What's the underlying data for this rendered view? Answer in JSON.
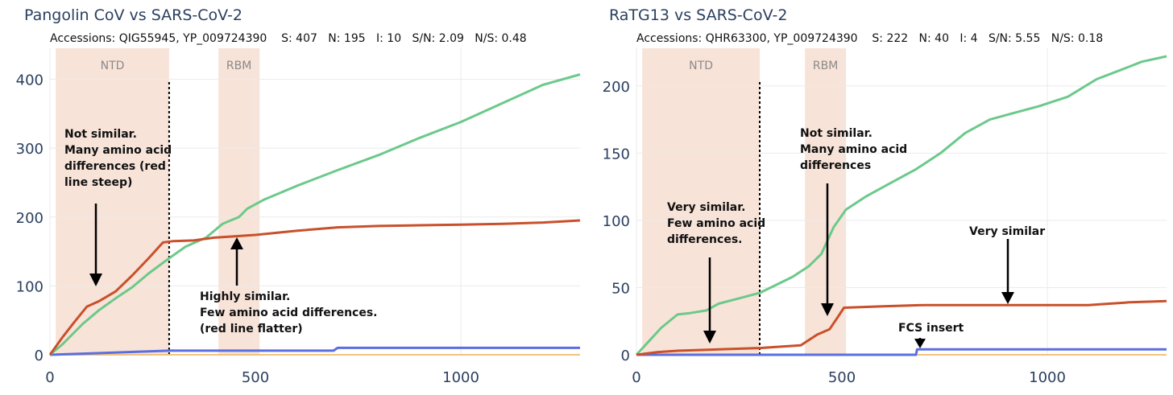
{
  "colors": {
    "synonymous": "#6cc98a",
    "nonsynonymous": "#c9502a",
    "indel": "#5b6ee1",
    "other": "#f2c37a",
    "region_fill": "#f8e3d8",
    "axis_text": "#2a3f5f"
  },
  "chart_data": [
    {
      "type": "line",
      "title": "Pangolin CoV vs SARS-CoV-2",
      "subtitle": {
        "accessions": "Accessions: QIG55945, YP_009724390",
        "S": "S: 407",
        "N": "N: 195",
        "I": "I: 10",
        "SN": "S/N: 2.09",
        "NS": "N/S: 0.48"
      },
      "xlim": [
        0,
        1290
      ],
      "ylim": [
        0,
        445
      ],
      "xticks": [
        0,
        500,
        1000
      ],
      "yticks": [
        0,
        100,
        200,
        300,
        400
      ],
      "grid": true,
      "regions": [
        {
          "label": "NTD",
          "x0": 14,
          "x1": 290
        },
        {
          "label": "RBM",
          "x0": 410,
          "x1": 510
        }
      ],
      "vline": 290,
      "series": [
        {
          "key": "synonymous",
          "x": [
            0,
            30,
            80,
            120,
            160,
            200,
            240,
            290,
            330,
            380,
            420,
            460,
            480,
            520,
            600,
            700,
            800,
            900,
            1000,
            1100,
            1200,
            1290
          ],
          "y": [
            0,
            15,
            45,
            65,
            82,
            98,
            118,
            140,
            157,
            170,
            190,
            200,
            212,
            225,
            245,
            268,
            290,
            315,
            338,
            365,
            392,
            407
          ]
        },
        {
          "key": "nonsynonymous",
          "x": [
            0,
            30,
            60,
            90,
            120,
            160,
            200,
            240,
            275,
            300,
            350,
            400,
            450,
            500,
            600,
            700,
            800,
            900,
            1000,
            1100,
            1200,
            1290
          ],
          "y": [
            0,
            25,
            48,
            70,
            78,
            92,
            115,
            140,
            163,
            165,
            166,
            170,
            172,
            174,
            180,
            185,
            187,
            188,
            189,
            190,
            192,
            195
          ]
        },
        {
          "key": "indel",
          "x": [
            0,
            150,
            290,
            690,
            700,
            1290
          ],
          "y": [
            0,
            3,
            6,
            6,
            10,
            10
          ]
        },
        {
          "key": "other",
          "x": [
            0,
            1290
          ],
          "y": [
            0,
            0
          ]
        }
      ],
      "annotations": [
        {
          "lines": [
            "Not similar.",
            "Many amino acid",
            "differences (red",
            "line steep)"
          ]
        },
        {
          "lines": [
            "Highly similar.",
            "Few amino acid differences.",
            "(red line flatter)"
          ]
        }
      ]
    },
    {
      "type": "line",
      "title": "RaTG13 vs SARS-CoV-2",
      "subtitle": {
        "accessions": "Accessions: QHR63300, YP_009724390",
        "S": "S: 222",
        "N": "N: 40",
        "I": "I: 4",
        "SN": "S/N: 5.55",
        "NS": "N/S: 0.18"
      },
      "xlim": [
        0,
        1290
      ],
      "ylim": [
        0,
        228
      ],
      "xticks": [
        0,
        500,
        1000
      ],
      "yticks": [
        0,
        50,
        100,
        150,
        200
      ],
      "grid": true,
      "regions": [
        {
          "label": "NTD",
          "x0": 14,
          "x1": 300
        },
        {
          "label": "RBM",
          "x0": 410,
          "x1": 510
        }
      ],
      "vline": 300,
      "series": [
        {
          "key": "synonymous",
          "x": [
            0,
            30,
            60,
            100,
            130,
            170,
            200,
            250,
            300,
            340,
            380,
            420,
            450,
            480,
            510,
            560,
            620,
            680,
            740,
            800,
            860,
            920,
            980,
            1050,
            1120,
            1180,
            1230,
            1290
          ],
          "y": [
            0,
            10,
            20,
            30,
            31,
            33,
            38,
            42,
            46,
            52,
            58,
            66,
            75,
            95,
            108,
            118,
            128,
            138,
            150,
            165,
            175,
            180,
            185,
            192,
            205,
            212,
            218,
            222
          ]
        },
        {
          "key": "nonsynonymous",
          "x": [
            0,
            50,
            100,
            200,
            300,
            400,
            440,
            470,
            490,
            505,
            600,
            700,
            800,
            900,
            1000,
            1100,
            1150,
            1200,
            1290
          ],
          "y": [
            0,
            2,
            3,
            4,
            5,
            7,
            15,
            19,
            28,
            35,
            36,
            37,
            37,
            37,
            37,
            37,
            38,
            39,
            40
          ]
        },
        {
          "key": "indel",
          "x": [
            0,
            680,
            683,
            1290
          ],
          "y": [
            0,
            0,
            4,
            4
          ]
        },
        {
          "key": "other",
          "x": [
            0,
            1290
          ],
          "y": [
            0,
            0
          ]
        }
      ],
      "annotations": [
        {
          "lines": [
            "Very similar.",
            "Few amino acid",
            "differences."
          ]
        },
        {
          "lines": [
            "Not similar.",
            "Many amino acid",
            "differences"
          ]
        },
        {
          "lines": [
            "Very similar"
          ]
        },
        {
          "lines": [
            "FCS insert"
          ]
        }
      ]
    }
  ]
}
